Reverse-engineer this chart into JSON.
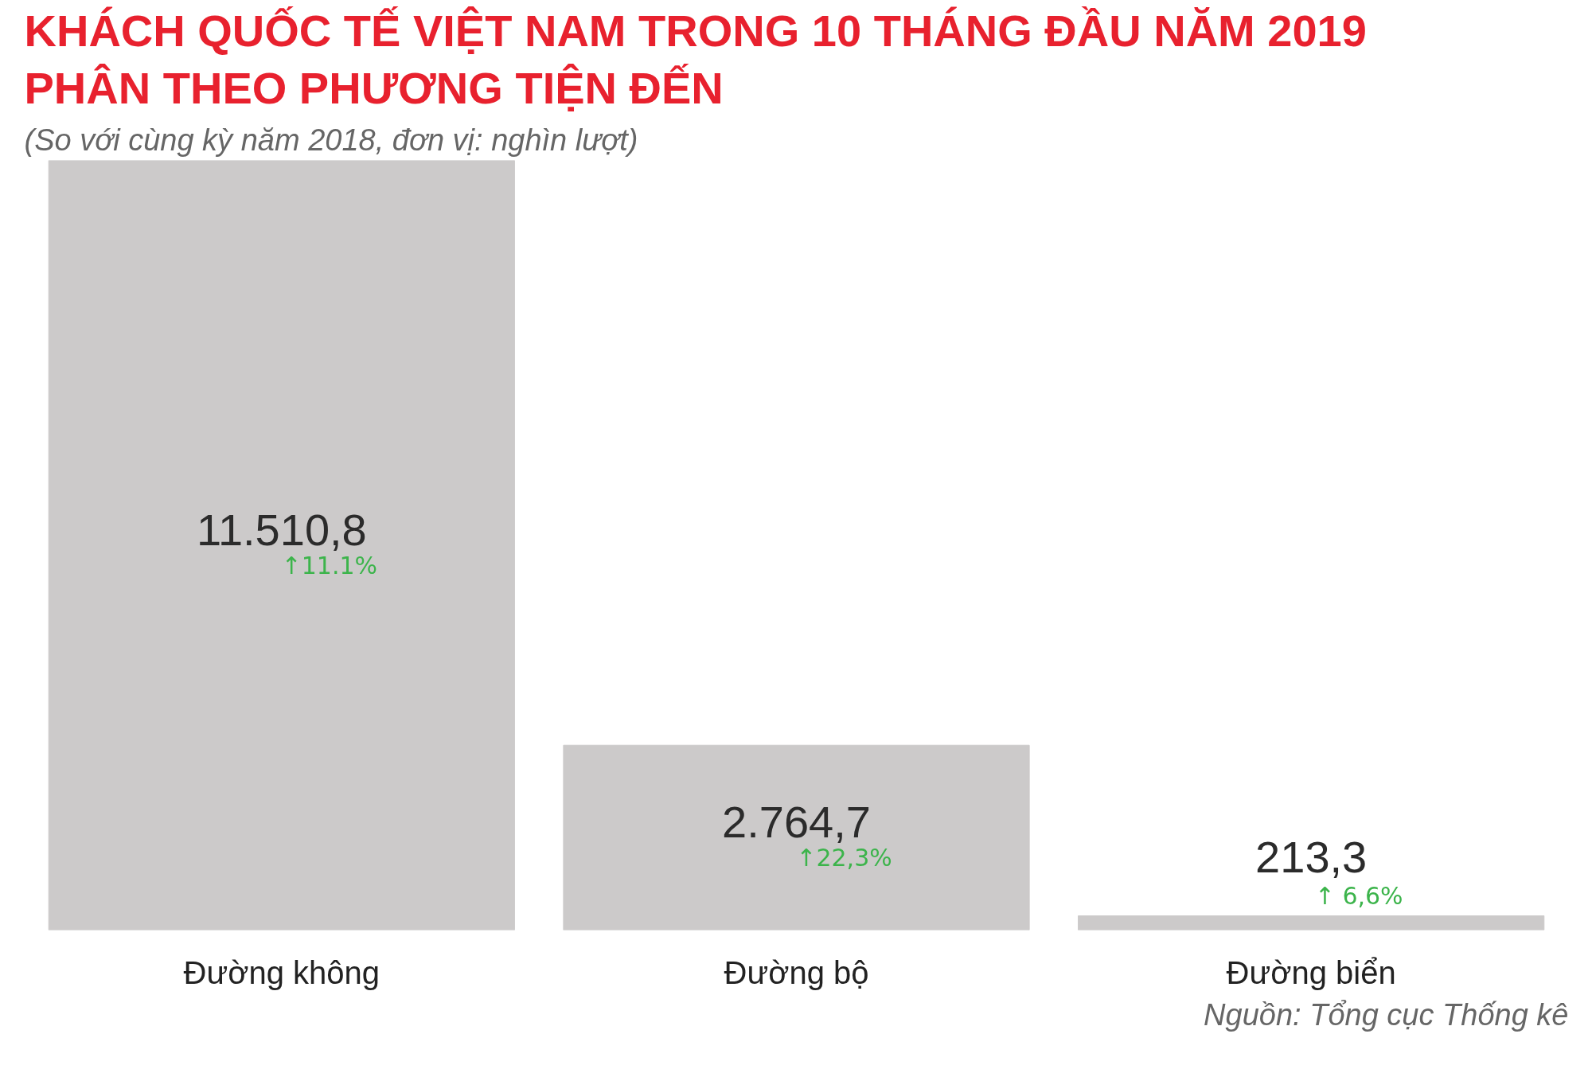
{
  "chart_data": {
    "type": "bar",
    "title": "KHÁCH QUỐC TẾ VIỆT NAM TRONG 10 THÁNG ĐẦU NĂM 2019\nPHÂN THEO PHƯƠNG TIỆN ĐẾN",
    "subtitle": "(So với cùng kỳ năm 2018, đơn vị: nghìn lượt)",
    "categories": [
      "Đường không",
      "Đường bộ",
      "Đường biển"
    ],
    "values": [
      11510.8,
      2764.7,
      213.3
    ],
    "value_labels": [
      "11.510,8",
      "2.764,7",
      "213,3"
    ],
    "color": "#cccaca",
    "annotations": [
      "↑11.1%",
      "↑22,3%",
      "↑ 6,6%",
      "Nguồn: Tổng cục Thống kê"
    ],
    "grid": false
  }
}
